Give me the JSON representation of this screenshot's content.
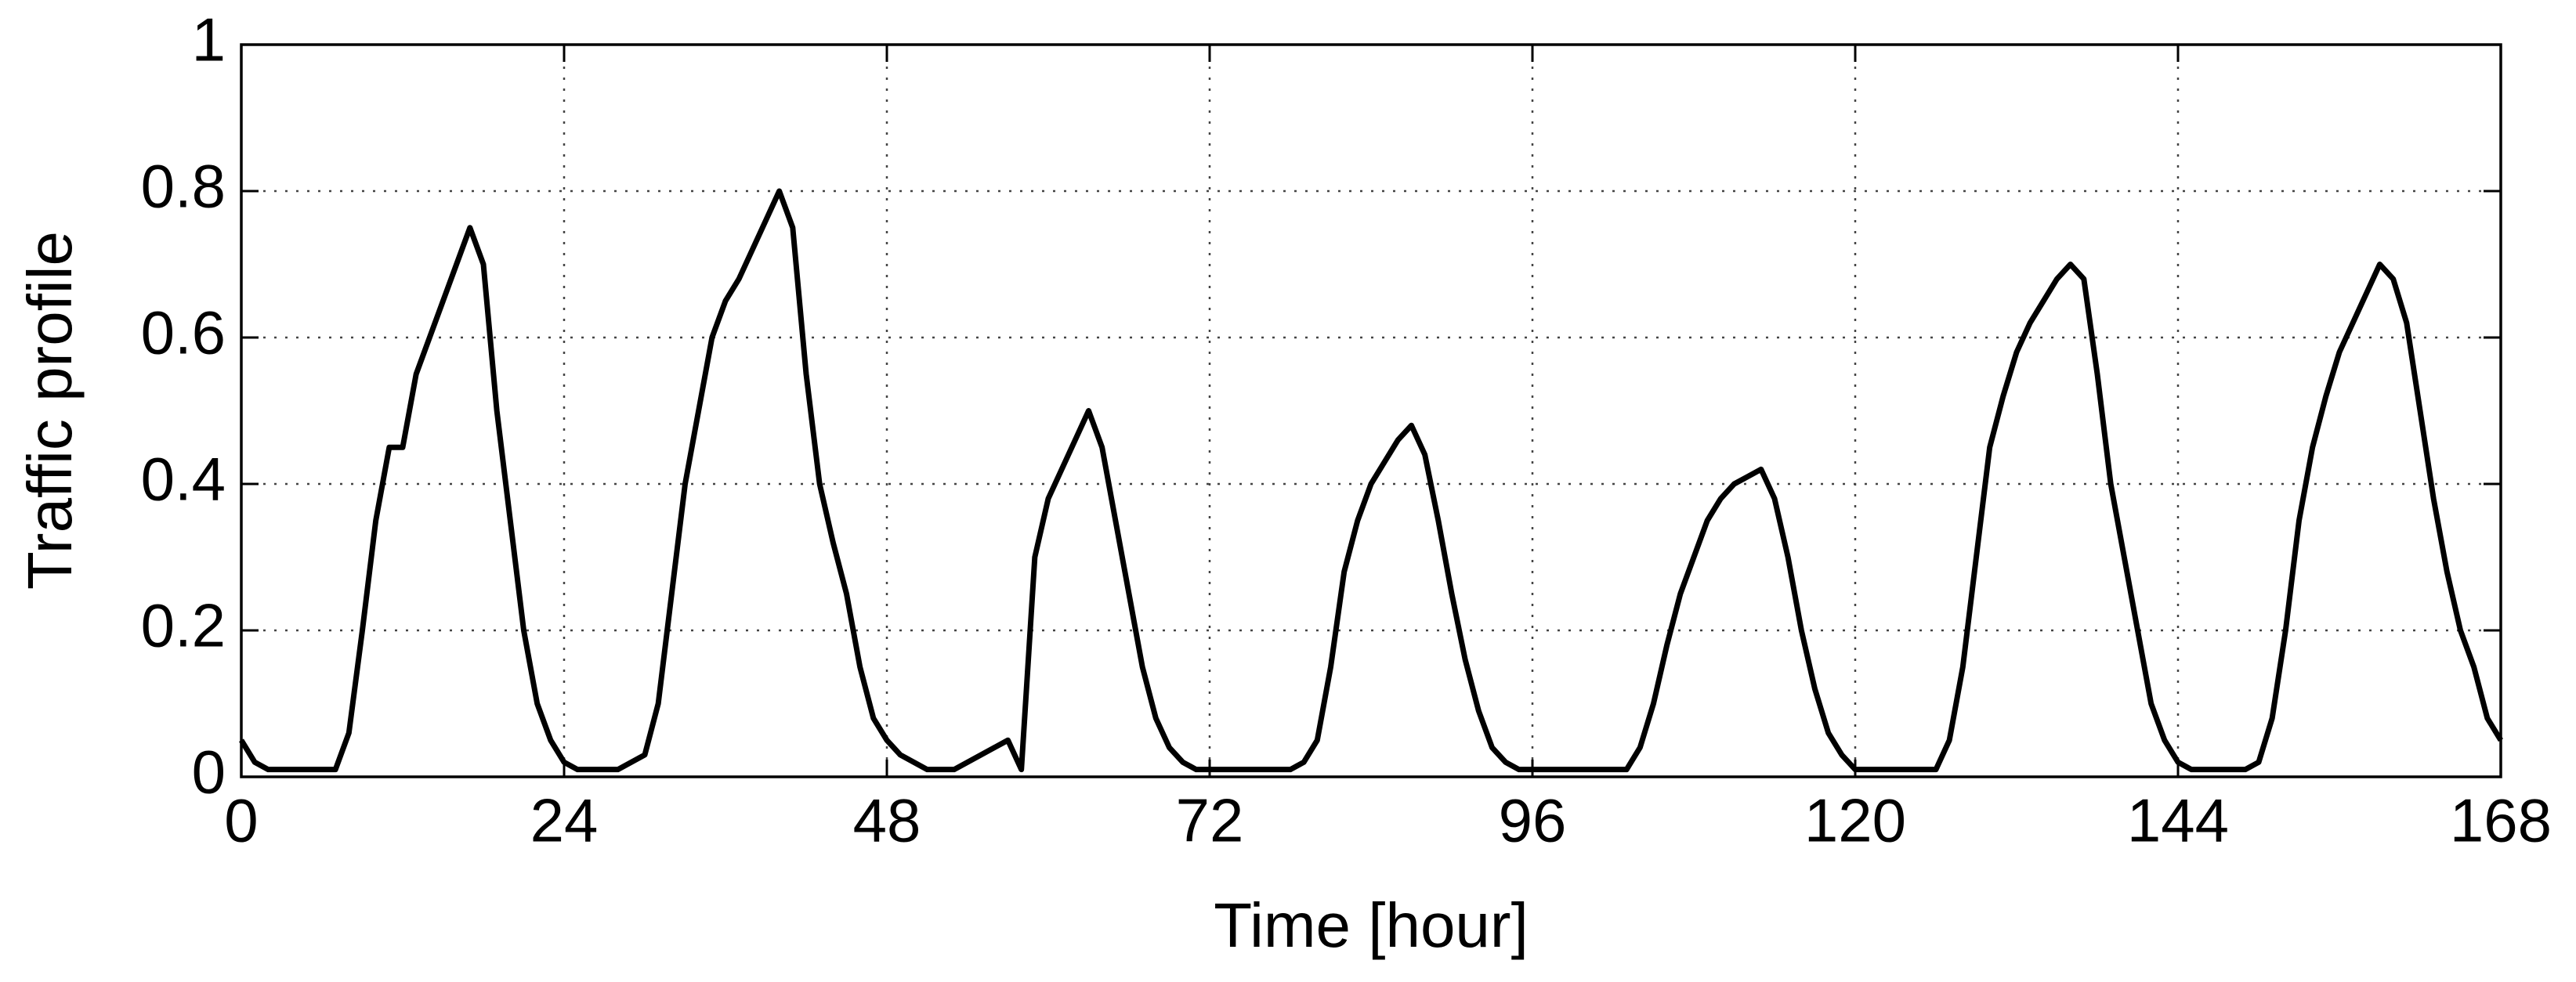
{
  "chart_data": {
    "type": "line",
    "xlabel": "Time [hour]",
    "ylabel": "Traffic profile",
    "color": "#000000",
    "grid": true,
    "xlim": [
      0,
      168
    ],
    "xticks": [
      0,
      24,
      48,
      72,
      96,
      120,
      144,
      168
    ],
    "ylim": [
      0,
      1
    ],
    "yticks": [
      0,
      0.2,
      0.4,
      0.6,
      0.8,
      1
    ],
    "x": [
      0,
      1,
      2,
      3,
      4,
      5,
      6,
      7,
      8,
      9,
      10,
      11,
      12,
      13,
      14,
      15,
      16,
      17,
      18,
      19,
      20,
      21,
      22,
      23,
      24,
      25,
      26,
      27,
      28,
      29,
      30,
      31,
      32,
      33,
      34,
      35,
      36,
      37,
      38,
      39,
      40,
      41,
      42,
      43,
      44,
      45,
      46,
      47,
      48,
      49,
      50,
      51,
      52,
      53,
      54,
      55,
      56,
      57,
      58,
      59,
      60,
      61,
      62,
      63,
      64,
      65,
      66,
      67,
      68,
      69,
      70,
      71,
      72,
      73,
      74,
      75,
      76,
      77,
      78,
      79,
      80,
      81,
      82,
      83,
      84,
      85,
      86,
      87,
      88,
      89,
      90,
      91,
      92,
      93,
      94,
      95,
      96,
      97,
      98,
      99,
      100,
      101,
      102,
      103,
      104,
      105,
      106,
      107,
      108,
      109,
      110,
      111,
      112,
      113,
      114,
      115,
      116,
      117,
      118,
      119,
      120,
      121,
      122,
      123,
      124,
      125,
      126,
      127,
      128,
      129,
      130,
      131,
      132,
      133,
      134,
      135,
      136,
      137,
      138,
      139,
      140,
      141,
      142,
      143,
      144,
      145,
      146,
      147,
      148,
      149,
      150,
      151,
      152,
      153,
      154,
      155,
      156,
      157,
      158,
      159,
      160,
      161,
      162,
      163,
      164,
      165,
      166,
      167,
      168
    ],
    "values": [
      0.05,
      0.02,
      0.01,
      0.01,
      0.01,
      0.01,
      0.01,
      0.01,
      0.06,
      0.2,
      0.35,
      0.45,
      0.45,
      0.55,
      0.6,
      0.65,
      0.7,
      0.75,
      0.7,
      0.5,
      0.35,
      0.2,
      0.1,
      0.05,
      0.02,
      0.01,
      0.01,
      0.01,
      0.01,
      0.02,
      0.03,
      0.1,
      0.25,
      0.4,
      0.5,
      0.6,
      0.65,
      0.68,
      0.72,
      0.76,
      0.8,
      0.75,
      0.55,
      0.4,
      0.32,
      0.25,
      0.15,
      0.08,
      0.05,
      0.03,
      0.02,
      0.01,
      0.01,
      0.01,
      0.02,
      0.03,
      0.04,
      0.05,
      0.01,
      0.3,
      0.38,
      0.42,
      0.46,
      0.5,
      0.45,
      0.35,
      0.25,
      0.15,
      0.08,
      0.04,
      0.02,
      0.01,
      0.01,
      0.01,
      0.01,
      0.01,
      0.01,
      0.01,
      0.01,
      0.02,
      0.05,
      0.15,
      0.28,
      0.35,
      0.4,
      0.43,
      0.46,
      0.48,
      0.44,
      0.35,
      0.25,
      0.16,
      0.09,
      0.04,
      0.02,
      0.01,
      0.01,
      0.01,
      0.01,
      0.01,
      0.01,
      0.01,
      0.01,
      0.01,
      0.04,
      0.1,
      0.18,
      0.25,
      0.3,
      0.35,
      0.38,
      0.4,
      0.41,
      0.42,
      0.38,
      0.3,
      0.2,
      0.12,
      0.06,
      0.03,
      0.01,
      0.01,
      0.01,
      0.01,
      0.01,
      0.01,
      0.01,
      0.05,
      0.15,
      0.3,
      0.45,
      0.52,
      0.58,
      0.62,
      0.65,
      0.68,
      0.7,
      0.68,
      0.55,
      0.4,
      0.3,
      0.2,
      0.1,
      0.05,
      0.02,
      0.01,
      0.01,
      0.01,
      0.01,
      0.01,
      0.02,
      0.08,
      0.2,
      0.35,
      0.45,
      0.52,
      0.58,
      0.62,
      0.66,
      0.7,
      0.68,
      0.62,
      0.5,
      0.38,
      0.28,
      0.2,
      0.15,
      0.08,
      0.05
    ]
  }
}
